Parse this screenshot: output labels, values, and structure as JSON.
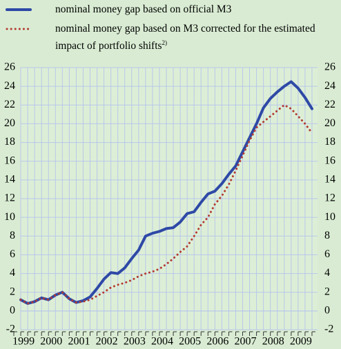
{
  "chart_data": {
    "type": "line",
    "xlim": [
      1999,
      2010
    ],
    "xticks": [
      1999,
      2000,
      2001,
      2002,
      2003,
      2004,
      2005,
      2006,
      2007,
      2008,
      2009
    ],
    "ylim": [
      -2,
      26
    ],
    "yticks": [
      -2,
      0,
      2,
      4,
      6,
      8,
      10,
      12,
      14,
      16,
      18,
      20,
      22,
      24,
      26
    ],
    "grid": true,
    "x": [
      1999.25,
      1999.5,
      1999.75,
      2000.0,
      2000.25,
      2000.5,
      2000.75,
      2001.0,
      2001.25,
      2001.5,
      2001.75,
      2002.0,
      2002.25,
      2002.5,
      2002.75,
      2003.0,
      2003.25,
      2003.5,
      2003.75,
      2004.0,
      2004.25,
      2004.5,
      2004.75,
      2005.0,
      2005.25,
      2005.5,
      2005.75,
      2006.0,
      2006.25,
      2006.5,
      2006.75,
      2007.0,
      2007.25,
      2007.5,
      2007.75,
      2008.0,
      2008.25,
      2008.5,
      2008.75,
      2009.0,
      2009.25,
      2009.5,
      2009.75
    ],
    "series": [
      {
        "name": "nominal money gap based on official M3",
        "color": "#2e49a6",
        "style": "solid",
        "values": [
          1.2,
          0.8,
          1.0,
          1.4,
          1.2,
          1.7,
          2.0,
          1.3,
          0.9,
          1.1,
          1.5,
          2.4,
          3.4,
          4.1,
          4.0,
          4.6,
          5.6,
          6.5,
          8.0,
          8.3,
          8.5,
          8.8,
          8.9,
          9.5,
          10.4,
          10.6,
          11.6,
          12.5,
          12.8,
          13.6,
          14.6,
          15.5,
          17.0,
          18.5,
          20.0,
          21.7,
          22.7,
          23.4,
          24.0,
          24.5,
          23.8,
          22.8,
          21.6
        ]
      },
      {
        "name": "nominal money gap based on M3 corrected for the estimated impact of portfolio shifts",
        "note": "2)",
        "color": "#b33a32",
        "style": "dotted",
        "values": [
          1.2,
          0.8,
          1.0,
          1.4,
          1.2,
          1.7,
          2.0,
          1.3,
          0.9,
          1.0,
          1.2,
          1.6,
          2.0,
          2.5,
          2.8,
          3.0,
          3.3,
          3.7,
          4.0,
          4.2,
          4.5,
          5.0,
          5.6,
          6.3,
          6.9,
          8.0,
          9.2,
          10.0,
          11.4,
          12.3,
          13.5,
          15.0,
          16.6,
          18.2,
          19.6,
          20.2,
          20.8,
          21.4,
          22.0,
          21.6,
          20.8,
          20.0,
          19.0
        ]
      }
    ]
  }
}
